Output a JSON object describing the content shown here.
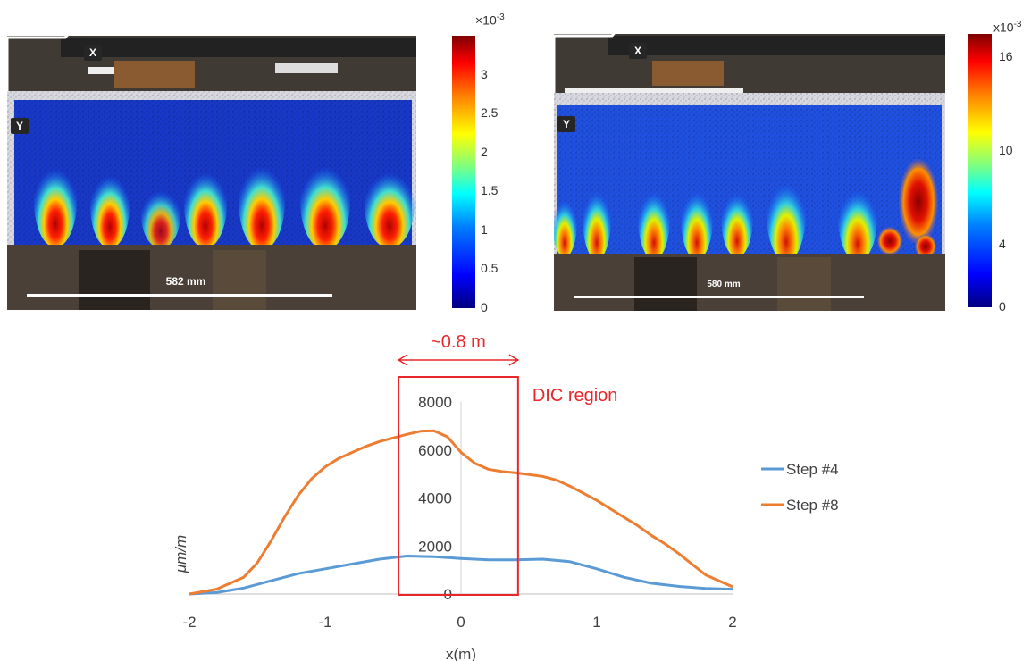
{
  "panels": [
    {
      "axis_x": "X",
      "axis_y": "Y",
      "scale_label": "582 mm",
      "colorbar": {
        "multiplier_base": "×10",
        "multiplier_exp": "-3",
        "ticks": [
          "3",
          "2.5",
          "2",
          "1.5",
          "1",
          "0.5",
          "0"
        ],
        "range": [
          0,
          3.5
        ]
      }
    },
    {
      "axis_x": "X",
      "axis_y": "Y",
      "scale_label": "580 mm",
      "colorbar": {
        "multiplier_base": "x10",
        "multiplier_exp": "-3",
        "ticks": [
          "16",
          "10",
          "4",
          "0"
        ],
        "range": [
          0,
          17.5
        ]
      }
    }
  ],
  "colors": {
    "step4": "#5b9bd5",
    "step8": "#ed7d31",
    "annotation": "#e8272b",
    "colormap": [
      "#00007f",
      "#0000ff",
      "#007fff",
      "#00ffff",
      "#7fff7f",
      "#ffff00",
      "#ff7f00",
      "#ff0000",
      "#7f0000"
    ]
  },
  "annotation": {
    "span_label": "~0.8 m",
    "region_label": "DIC region",
    "region_x": [
      -0.46,
      0.42
    ]
  },
  "chart_data": {
    "type": "line",
    "xlabel": "x(m)",
    "ylabel": "μm/m",
    "xlim": [
      -2,
      2
    ],
    "ylim": [
      0,
      8000
    ],
    "xticks": [
      -2,
      -1,
      0,
      1,
      2
    ],
    "yticks": [
      0,
      2000,
      4000,
      6000,
      8000
    ],
    "grid": false,
    "legend": "right",
    "series": [
      {
        "name": "Step #4",
        "x": [
          -2,
          -1.8,
          -1.6,
          -1.4,
          -1.2,
          -1.0,
          -0.8,
          -0.6,
          -0.4,
          -0.2,
          0,
          0.2,
          0.4,
          0.6,
          0.8,
          1.0,
          1.2,
          1.4,
          1.6,
          1.8,
          2.0
        ],
        "y": [
          0,
          60,
          250,
          550,
          850,
          1050,
          1250,
          1450,
          1580,
          1550,
          1480,
          1420,
          1420,
          1450,
          1350,
          1050,
          700,
          450,
          320,
          230,
          200
        ]
      },
      {
        "name": "Step #8",
        "x": [
          -2,
          -1.8,
          -1.6,
          -1.5,
          -1.4,
          -1.3,
          -1.2,
          -1.1,
          -1.0,
          -0.9,
          -0.8,
          -0.7,
          -0.6,
          -0.5,
          -0.4,
          -0.3,
          -0.2,
          -0.1,
          0,
          0.1,
          0.2,
          0.3,
          0.4,
          0.5,
          0.6,
          0.7,
          0.8,
          0.9,
          1.0,
          1.1,
          1.2,
          1.3,
          1.4,
          1.5,
          1.6,
          1.7,
          1.8,
          1.9,
          2.0
        ],
        "y": [
          0,
          200,
          700,
          1300,
          2200,
          3200,
          4100,
          4800,
          5300,
          5650,
          5900,
          6150,
          6350,
          6500,
          6650,
          6780,
          6800,
          6550,
          5900,
          5450,
          5200,
          5100,
          5050,
          4980,
          4900,
          4750,
          4500,
          4200,
          3900,
          3550,
          3200,
          2850,
          2450,
          2100,
          1700,
          1250,
          800,
          550,
          300
        ]
      }
    ]
  }
}
